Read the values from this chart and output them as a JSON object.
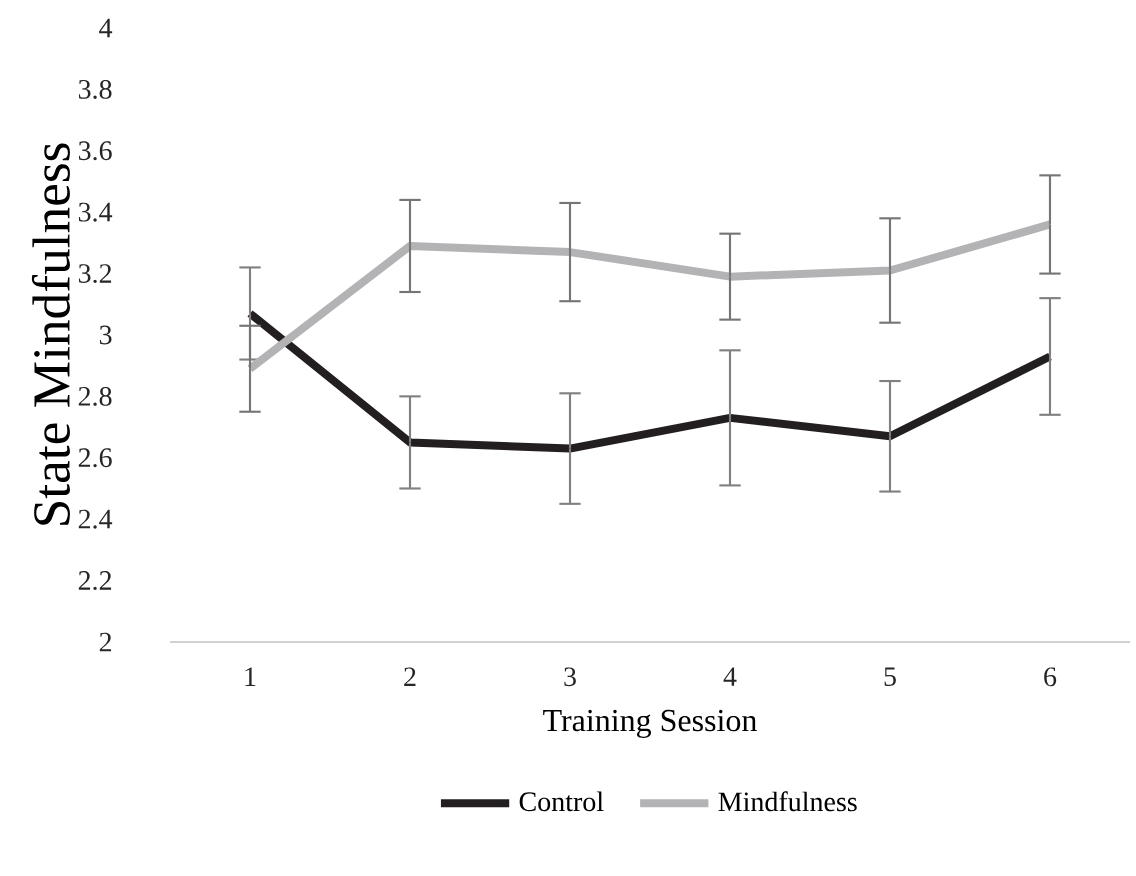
{
  "chart_data": {
    "type": "line",
    "xlabel": "Training Session",
    "ylabel": "State Mindfulness",
    "categories": [
      "1",
      "2",
      "3",
      "4",
      "5",
      "6"
    ],
    "series": [
      {
        "name": "Control",
        "color": "#231f20",
        "values": [
          3.07,
          2.65,
          2.63,
          2.73,
          2.67,
          2.93
        ],
        "errors": [
          0.15,
          0.15,
          0.18,
          0.22,
          0.18,
          0.19
        ]
      },
      {
        "name": "Mindfulness",
        "color": "#b3b3b6",
        "values": [
          2.89,
          3.29,
          3.27,
          3.19,
          3.21,
          3.36
        ],
        "errors": [
          0.14,
          0.15,
          0.16,
          0.14,
          0.17,
          0.16
        ]
      }
    ],
    "ylim": [
      2,
      4
    ],
    "yticks": [
      2,
      2.2,
      2.4,
      2.6,
      2.8,
      3,
      3.2,
      3.4,
      3.6,
      3.8,
      4
    ],
    "grid": false,
    "legend": "bottom",
    "marker": "none",
    "line_style": "solid"
  }
}
